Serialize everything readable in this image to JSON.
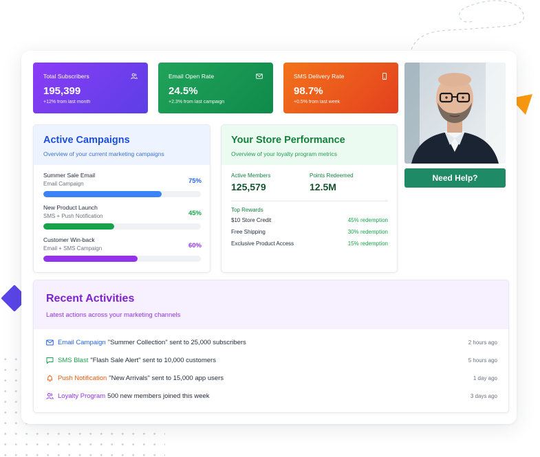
{
  "stats": [
    {
      "label": "Total Subscribers",
      "value": "195,399",
      "delta": "+12% from last month",
      "icon": "users-icon"
    },
    {
      "label": "Email Open Rate",
      "value": "24.5%",
      "delta": "+2.3% from last campaign",
      "icon": "mail-icon"
    },
    {
      "label": "SMS Delivery Rate",
      "value": "98.7%",
      "delta": "+0.5% from last week",
      "icon": "phone-icon"
    }
  ],
  "help_button": "Need Help?",
  "campaigns": {
    "title": "Active Campaigns",
    "subtitle": "Overview of your current marketing campaigns",
    "items": [
      {
        "name": "Summer Sale Email",
        "type": "Email Campaign",
        "percent": "75%",
        "progress": 0.75,
        "color": "#3b82f6"
      },
      {
        "name": "New Product Launch",
        "type": "SMS + Push Notification",
        "percent": "45%",
        "progress": 0.45,
        "color": "#16a34a"
      },
      {
        "name": "Customer Win-back",
        "type": "Email + SMS Campaign",
        "percent": "60%",
        "progress": 0.6,
        "color": "#9333ea"
      }
    ]
  },
  "performance": {
    "title": "Your Store Performance",
    "subtitle": "Overview of your loyalty program metrics",
    "metrics": [
      {
        "label": "Active Members",
        "value": "125,579"
      },
      {
        "label": "Points Redeemed",
        "value": "12.5M"
      }
    ],
    "rewards_title": "Top Rewards",
    "rewards": [
      {
        "name": "$10 Store Credit",
        "value": "45% redemption"
      },
      {
        "name": "Free Shipping",
        "value": "30% redemption"
      },
      {
        "name": "Exclusive Product Access",
        "value": "15% redemption"
      }
    ]
  },
  "activities": {
    "title": "Recent Activities",
    "subtitle": "Latest actions across your marketing channels",
    "items": [
      {
        "channel": "Email Campaign",
        "description": "\"Summer Collection\" sent to 25,000 subscribers",
        "time": "2 hours ago",
        "color": "#2563eb",
        "icon": "mail-icon"
      },
      {
        "channel": "SMS Blast",
        "description": "\"Flash Sale Alert\" sent to 10,000 customers",
        "time": "5 hours ago",
        "color": "#16a34a",
        "icon": "message-icon"
      },
      {
        "channel": "Push Notification",
        "description": "\"New Arrivals\" sent to 15,000 app users",
        "time": "1 day ago",
        "color": "#ea580c",
        "icon": "bell-icon"
      },
      {
        "channel": "Loyalty Program",
        "description": "500 new members joined this week",
        "time": "3 days ago",
        "color": "#9333ea",
        "icon": "users-icon"
      }
    ]
  }
}
